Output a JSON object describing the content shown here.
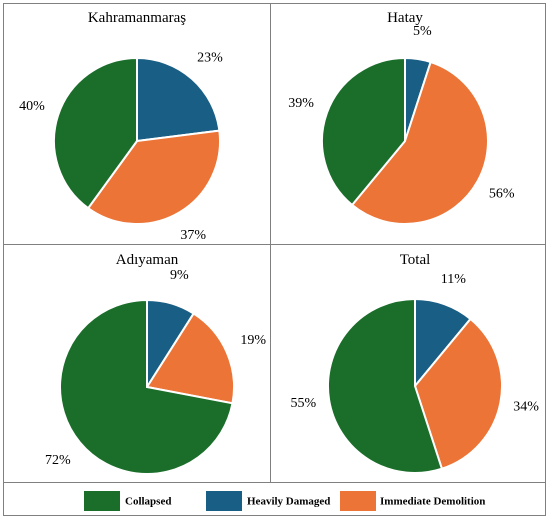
{
  "colors": {
    "collapsed": "#1a6e2a",
    "heavily_damaged": "#195e84",
    "immediate_demolition": "#eb7436"
  },
  "chart_data": [
    {
      "type": "pie",
      "title": "Kahramanmaraş",
      "slices": [
        {
          "category": "Heavily Damaged",
          "value": 23,
          "label": "23%"
        },
        {
          "category": "Immediate Demolition",
          "value": 37,
          "label": "37%"
        },
        {
          "category": "Collapsed",
          "value": 40,
          "label": "40%"
        }
      ]
    },
    {
      "type": "pie",
      "title": "Hatay",
      "slices": [
        {
          "category": "Heavily Damaged",
          "value": 5,
          "label": "5%"
        },
        {
          "category": "Immediate Demolition",
          "value": 56,
          "label": "56%"
        },
        {
          "category": "Collapsed",
          "value": 39,
          "label": "39%"
        }
      ]
    },
    {
      "type": "pie",
      "title": "Adıyaman",
      "slices": [
        {
          "category": "Heavily Damaged",
          "value": 9,
          "label": "9%"
        },
        {
          "category": "Immediate Demolition",
          "value": 19,
          "label": "19%"
        },
        {
          "category": "Collapsed",
          "value": 72,
          "label": "72%"
        }
      ]
    },
    {
      "type": "pie",
      "title": "Total",
      "slices": [
        {
          "category": "Heavily Damaged",
          "value": 11,
          "label": "11%"
        },
        {
          "category": "Immediate Demolition",
          "value": 34,
          "label": "34%"
        },
        {
          "category": "Collapsed",
          "value": 55,
          "label": "55%"
        }
      ]
    }
  ],
  "legend": [
    {
      "category": "Collapsed",
      "label": "Collapsed"
    },
    {
      "category": "Heavily Damaged",
      "label": "Heavily Damaged"
    },
    {
      "category": "Immediate Demolition",
      "label": "Immediate Demolition"
    }
  ]
}
